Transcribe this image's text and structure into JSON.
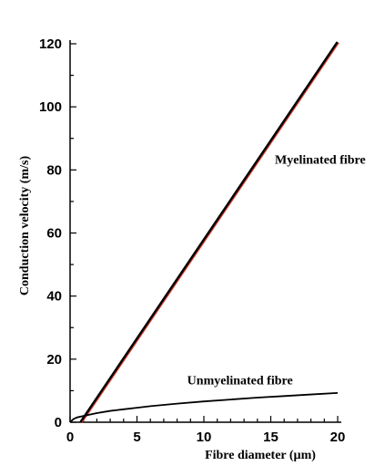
{
  "chart_data": {
    "type": "line",
    "title": "",
    "xlabel": "Fibre diameter (µm)",
    "ylabel": "Conduction velocity (m/s)",
    "xlim": [
      0,
      20
    ],
    "ylim": [
      0,
      120
    ],
    "xticks": [
      0,
      5,
      10,
      15,
      20
    ],
    "yticks": [
      0,
      20,
      40,
      60,
      80,
      100,
      120
    ],
    "grid": false,
    "legend": "none",
    "series": [
      {
        "color": "#000000",
        "overlay_color": "#d23a2a",
        "x": [
          0.8,
          20
        ],
        "y": [
          0,
          120.5
        ]
      },
      {
        "color": "#000000",
        "x": [
          0,
          0.25,
          0.5,
          1,
          2,
          3,
          4,
          5,
          6,
          8,
          10,
          12,
          14,
          16,
          18,
          20
        ],
        "y": [
          0,
          1.0,
          1.5,
          2.0,
          2.9,
          3.6,
          4.1,
          4.6,
          5.1,
          5.9,
          6.6,
          7.2,
          7.8,
          8.3,
          8.8,
          9.3
        ]
      }
    ],
    "annotations": [
      {
        "text": "Myelinated fibre",
        "x": 18.7,
        "y": 82
      },
      {
        "text": "Unmyelinated fibre",
        "x": 12.7,
        "y": 12
      }
    ]
  }
}
